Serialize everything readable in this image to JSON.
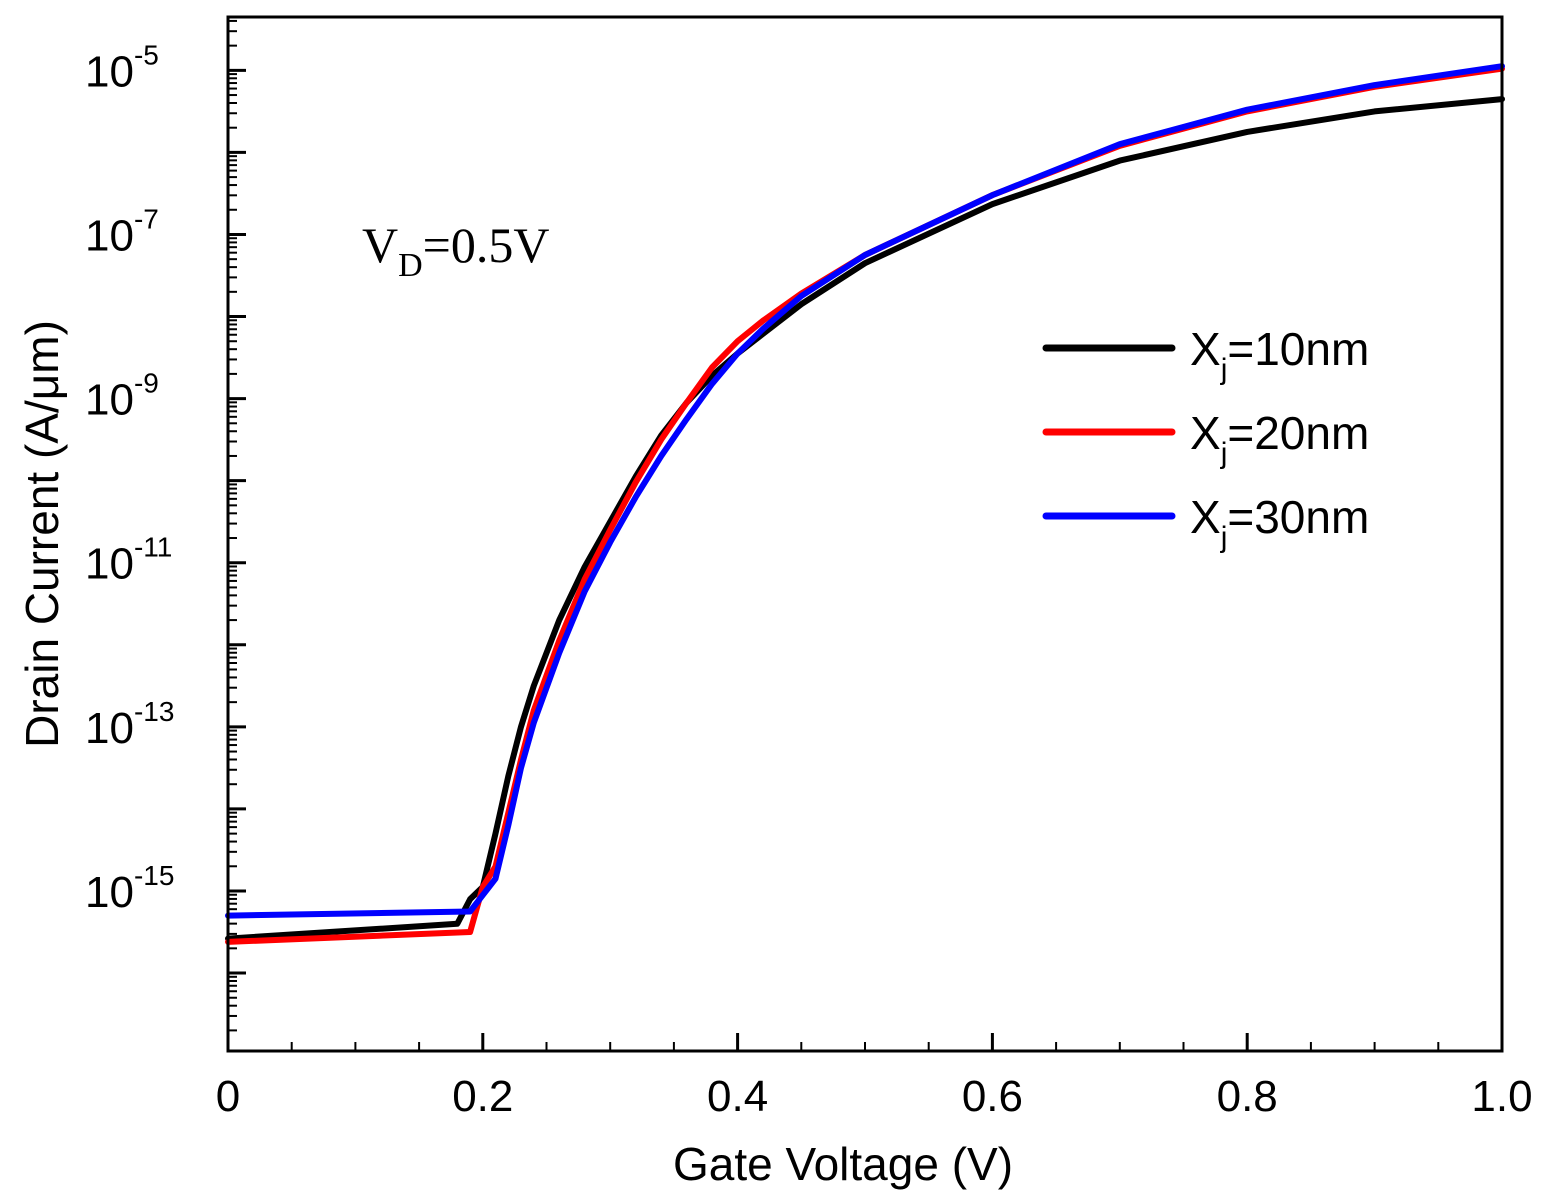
{
  "chart_data": {
    "type": "line",
    "xlabel": "Gate Voltage (V)",
    "ylabel": "Drain Current (A/μm)",
    "xlim": [
      0,
      1.0
    ],
    "ylim_log10": [
      -16.95,
      -4.35
    ],
    "yscale": "log",
    "xticks": [
      {
        "value": 0,
        "label": "0"
      },
      {
        "value": 0.2,
        "label": "0.2"
      },
      {
        "value": 0.4,
        "label": "0.4"
      },
      {
        "value": 0.6,
        "label": "0.6"
      },
      {
        "value": 0.8,
        "label": "0.8"
      },
      {
        "value": 1.0,
        "label": "1.0"
      }
    ],
    "yticks": [
      {
        "exp": -5,
        "base": "10",
        "sup": "-5"
      },
      {
        "exp": -7,
        "base": "10",
        "sup": "-7"
      },
      {
        "exp": -9,
        "base": "10",
        "sup": "-9"
      },
      {
        "exp": -11,
        "base": "10",
        "sup": "-11"
      },
      {
        "exp": -13,
        "base": "10",
        "sup": "-13"
      },
      {
        "exp": -15,
        "base": "10",
        "sup": "-15"
      }
    ],
    "annotation": {
      "main": "V",
      "sub": "D",
      "rest": "=0.5V"
    },
    "legend_position": "right",
    "series": [
      {
        "name": "Xj=10nm",
        "label_main": "X",
        "label_sub": "j",
        "label_rest": "=10nm",
        "color": "#000000",
        "x": [
          0,
          0.18,
          0.19,
          0.2,
          0.21,
          0.22,
          0.23,
          0.24,
          0.26,
          0.28,
          0.3,
          0.32,
          0.34,
          0.36,
          0.38,
          0.4,
          0.45,
          0.5,
          0.6,
          0.7,
          0.8,
          0.9,
          1.0
        ],
        "log10_y": [
          -15.58,
          -15.4,
          -15.1,
          -14.95,
          -14.3,
          -13.6,
          -13.0,
          -12.5,
          -11.7,
          -11.05,
          -10.5,
          -9.95,
          -9.45,
          -9.05,
          -8.72,
          -8.45,
          -7.85,
          -7.35,
          -6.63,
          -6.1,
          -5.75,
          -5.5,
          -5.35
        ]
      },
      {
        "name": "Xj=20nm",
        "label_main": "X",
        "label_sub": "j",
        "label_rest": "=20nm",
        "color": "#ff0000",
        "x": [
          0,
          0.19,
          0.2,
          0.21,
          0.22,
          0.23,
          0.24,
          0.26,
          0.28,
          0.3,
          0.32,
          0.34,
          0.36,
          0.38,
          0.4,
          0.42,
          0.45,
          0.5,
          0.6,
          0.7,
          0.8,
          0.9,
          1.0
        ],
        "log10_y": [
          -15.62,
          -15.5,
          -14.95,
          -14.7,
          -14.05,
          -13.4,
          -12.8,
          -11.95,
          -11.2,
          -10.6,
          -10.02,
          -9.5,
          -9.05,
          -8.62,
          -8.3,
          -8.05,
          -7.72,
          -7.25,
          -6.52,
          -5.92,
          -5.5,
          -5.2,
          -4.98
        ]
      },
      {
        "name": "Xj=30nm",
        "label_main": "X",
        "label_sub": "j",
        "label_rest": "=30nm",
        "color": "#0000ff",
        "x": [
          0,
          0.19,
          0.2,
          0.21,
          0.22,
          0.23,
          0.24,
          0.26,
          0.28,
          0.3,
          0.32,
          0.34,
          0.36,
          0.38,
          0.4,
          0.42,
          0.45,
          0.5,
          0.6,
          0.7,
          0.8,
          0.9,
          1.0
        ],
        "log10_y": [
          -15.3,
          -15.25,
          -15.05,
          -14.85,
          -14.2,
          -13.5,
          -12.95,
          -12.1,
          -11.35,
          -10.75,
          -10.2,
          -9.7,
          -9.25,
          -8.82,
          -8.45,
          -8.15,
          -7.75,
          -7.25,
          -6.52,
          -5.9,
          -5.48,
          -5.18,
          -4.95
        ]
      }
    ]
  }
}
